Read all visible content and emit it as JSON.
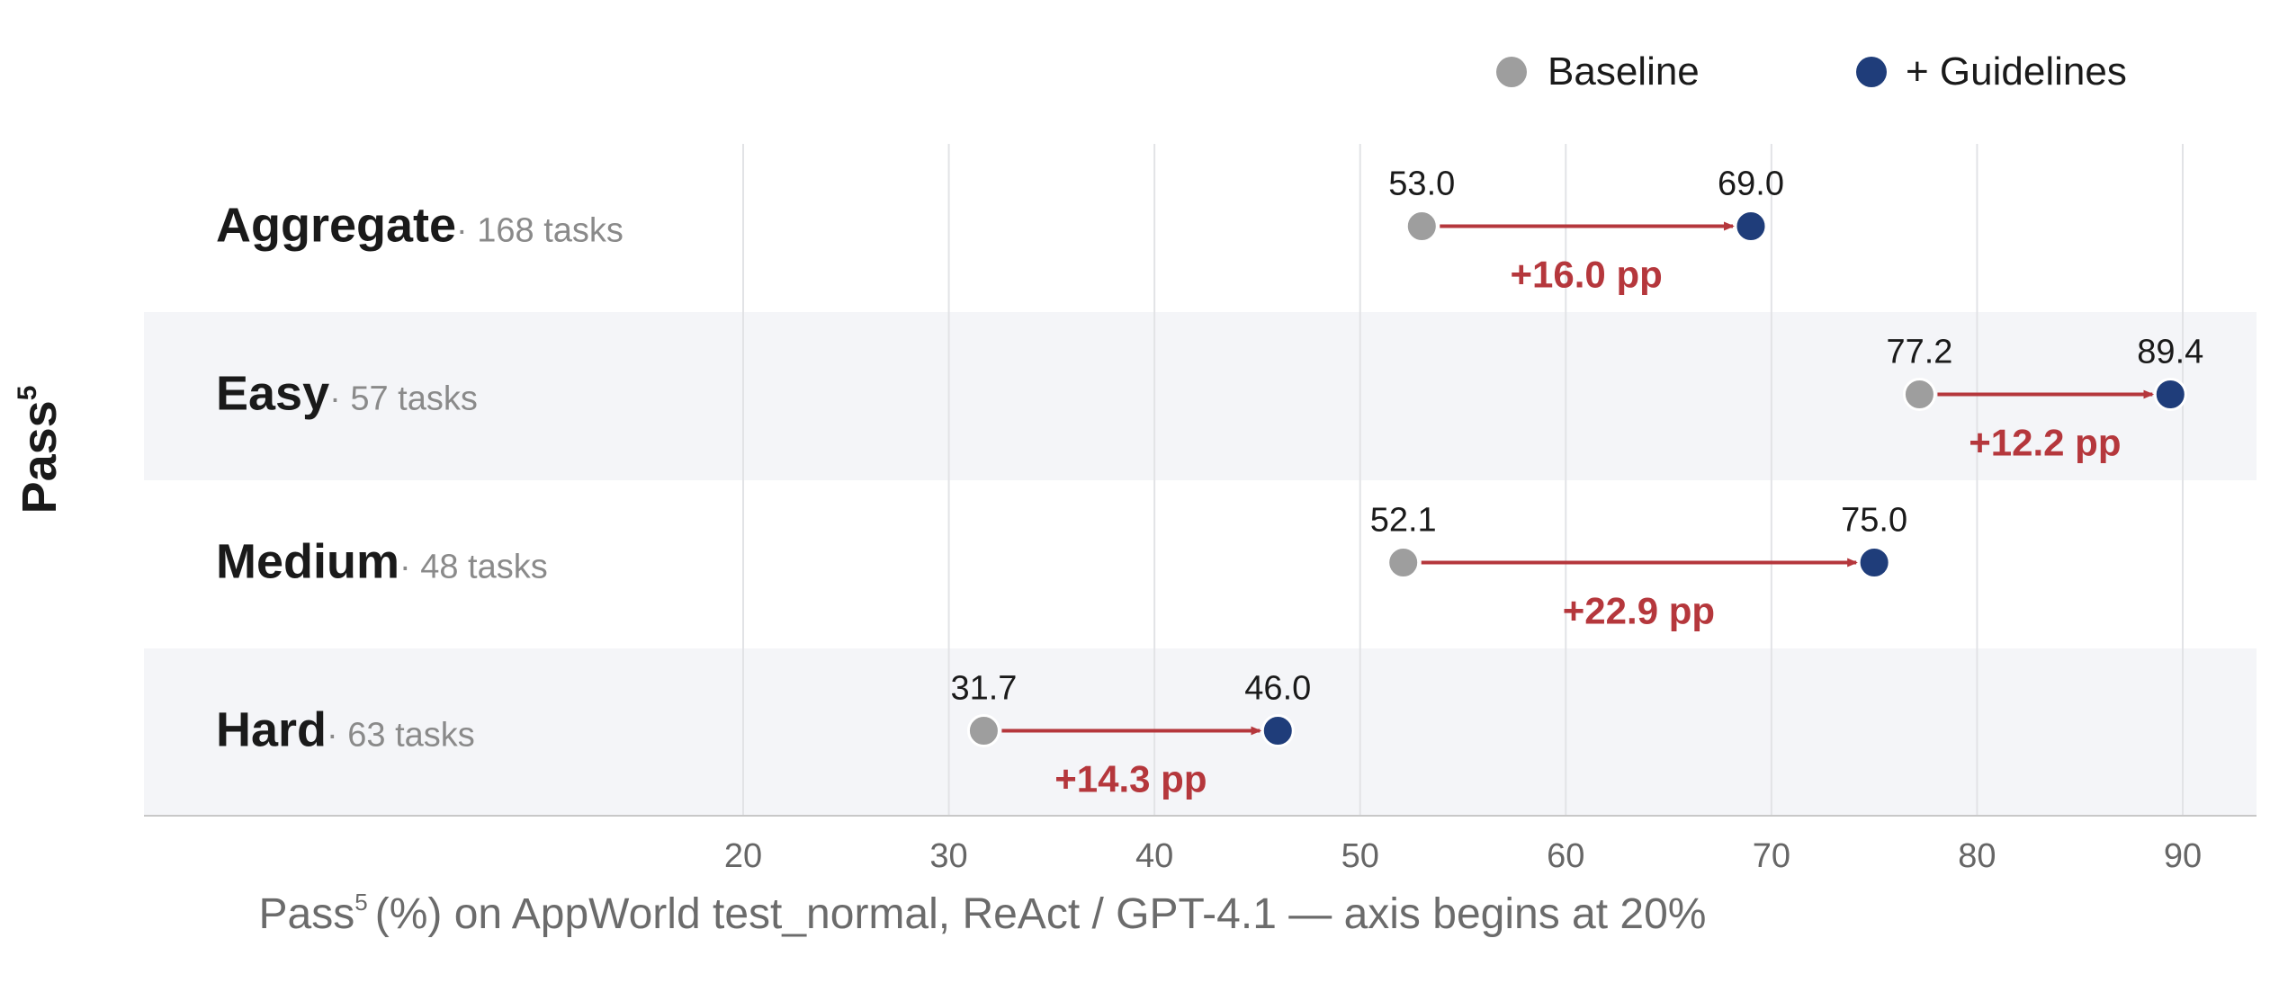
{
  "chart_data": {
    "type": "dumbbell",
    "title": "",
    "ylabel": "Pass",
    "ylabel_sup": "5",
    "xlabel": "(%) on AppWorld test_normal, ReAct / GPT-4.1 — axis begins at 20%",
    "xlabel_prefix": "Pass",
    "xlabel_sup": "5",
    "xlim": [
      20,
      93
    ],
    "xticks": [
      20,
      30,
      40,
      50,
      60,
      70,
      80,
      90
    ],
    "grid": true,
    "legend_position": "top-right",
    "series": [
      {
        "name": "Baseline",
        "color": "#9e9e9e"
      },
      {
        "name": "+ Guidelines",
        "color": "#1f3d7a"
      }
    ],
    "rows": [
      {
        "label": "Aggregate",
        "note": "· 168 tasks",
        "baseline": 53.0,
        "guidelines": 69.0,
        "baseline_label": "53.0",
        "guidelines_label": "69.0",
        "delta_label": "+16.0 pp"
      },
      {
        "label": "Easy",
        "note": "· 57 tasks",
        "baseline": 77.2,
        "guidelines": 89.4,
        "baseline_label": "77.2",
        "guidelines_label": "89.4",
        "delta_label": "+12.2 pp"
      },
      {
        "label": "Medium",
        "note": "· 48 tasks",
        "baseline": 52.1,
        "guidelines": 75.0,
        "baseline_label": "52.1",
        "guidelines_label": "75.0",
        "delta_label": "+22.9 pp"
      },
      {
        "label": "Hard",
        "note": "· 63 tasks",
        "baseline": 31.7,
        "guidelines": 46.0,
        "baseline_label": "31.7",
        "guidelines_label": "46.0",
        "delta_label": "+14.3 pp"
      }
    ],
    "colors": {
      "arrow": "#b5373c",
      "delta_text": "#b5373c",
      "stripe": "#f4f5f8",
      "grid": "#e2e3e6",
      "axis": "#c8c8c8",
      "tick_text": "#666666",
      "note_text": "#8a8a8a",
      "label_text": "#1a1a1a"
    }
  }
}
